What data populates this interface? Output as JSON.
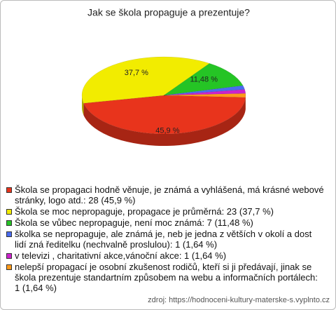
{
  "chart_data": {
    "type": "pie",
    "title": "Jak se škola propaguje a prezentuje?",
    "categories": [
      "Škola se propagaci hodně věnuje, je známá a vyhlášená, má krásné webové stránky, logo atd.: 28 (45,9 %)",
      "Škola se moc nepropaguje, propagace je průměrná: 23 (37,7 %)",
      "Škola se vůbec nepropaguje, není moc známá: 7 (11,48 %)",
      "školka se nepropaguje, ale známá je, neb je jedna z větších v okolí a dost lidí zná ředitelku (nechvalně proslulou): 1 (1,64 %)",
      "v televizi , charitativní akce,vánoční akce: 1 (1,64 %)",
      "nelepší propagací je osobní zkušenost rodičů, kteří si ji předávají, jinak se škola prezentuje standartním způsobem na webu a informačních portálech: 1 (1,64 %)"
    ],
    "values": [
      45.9,
      37.7,
      11.48,
      1.64,
      1.64,
      1.64
    ],
    "value_labels": [
      "45,9 %",
      "37,7 %",
      "11,48 %",
      null,
      null,
      null
    ],
    "colors": [
      "#e8341c",
      "#f2ec00",
      "#25c425",
      "#4a6cf0",
      "#cc22cc",
      "#ff9a1a"
    ],
    "source": "zdroj: https://hodnoceni-kultury-materske-s.vyplnto.cz"
  }
}
